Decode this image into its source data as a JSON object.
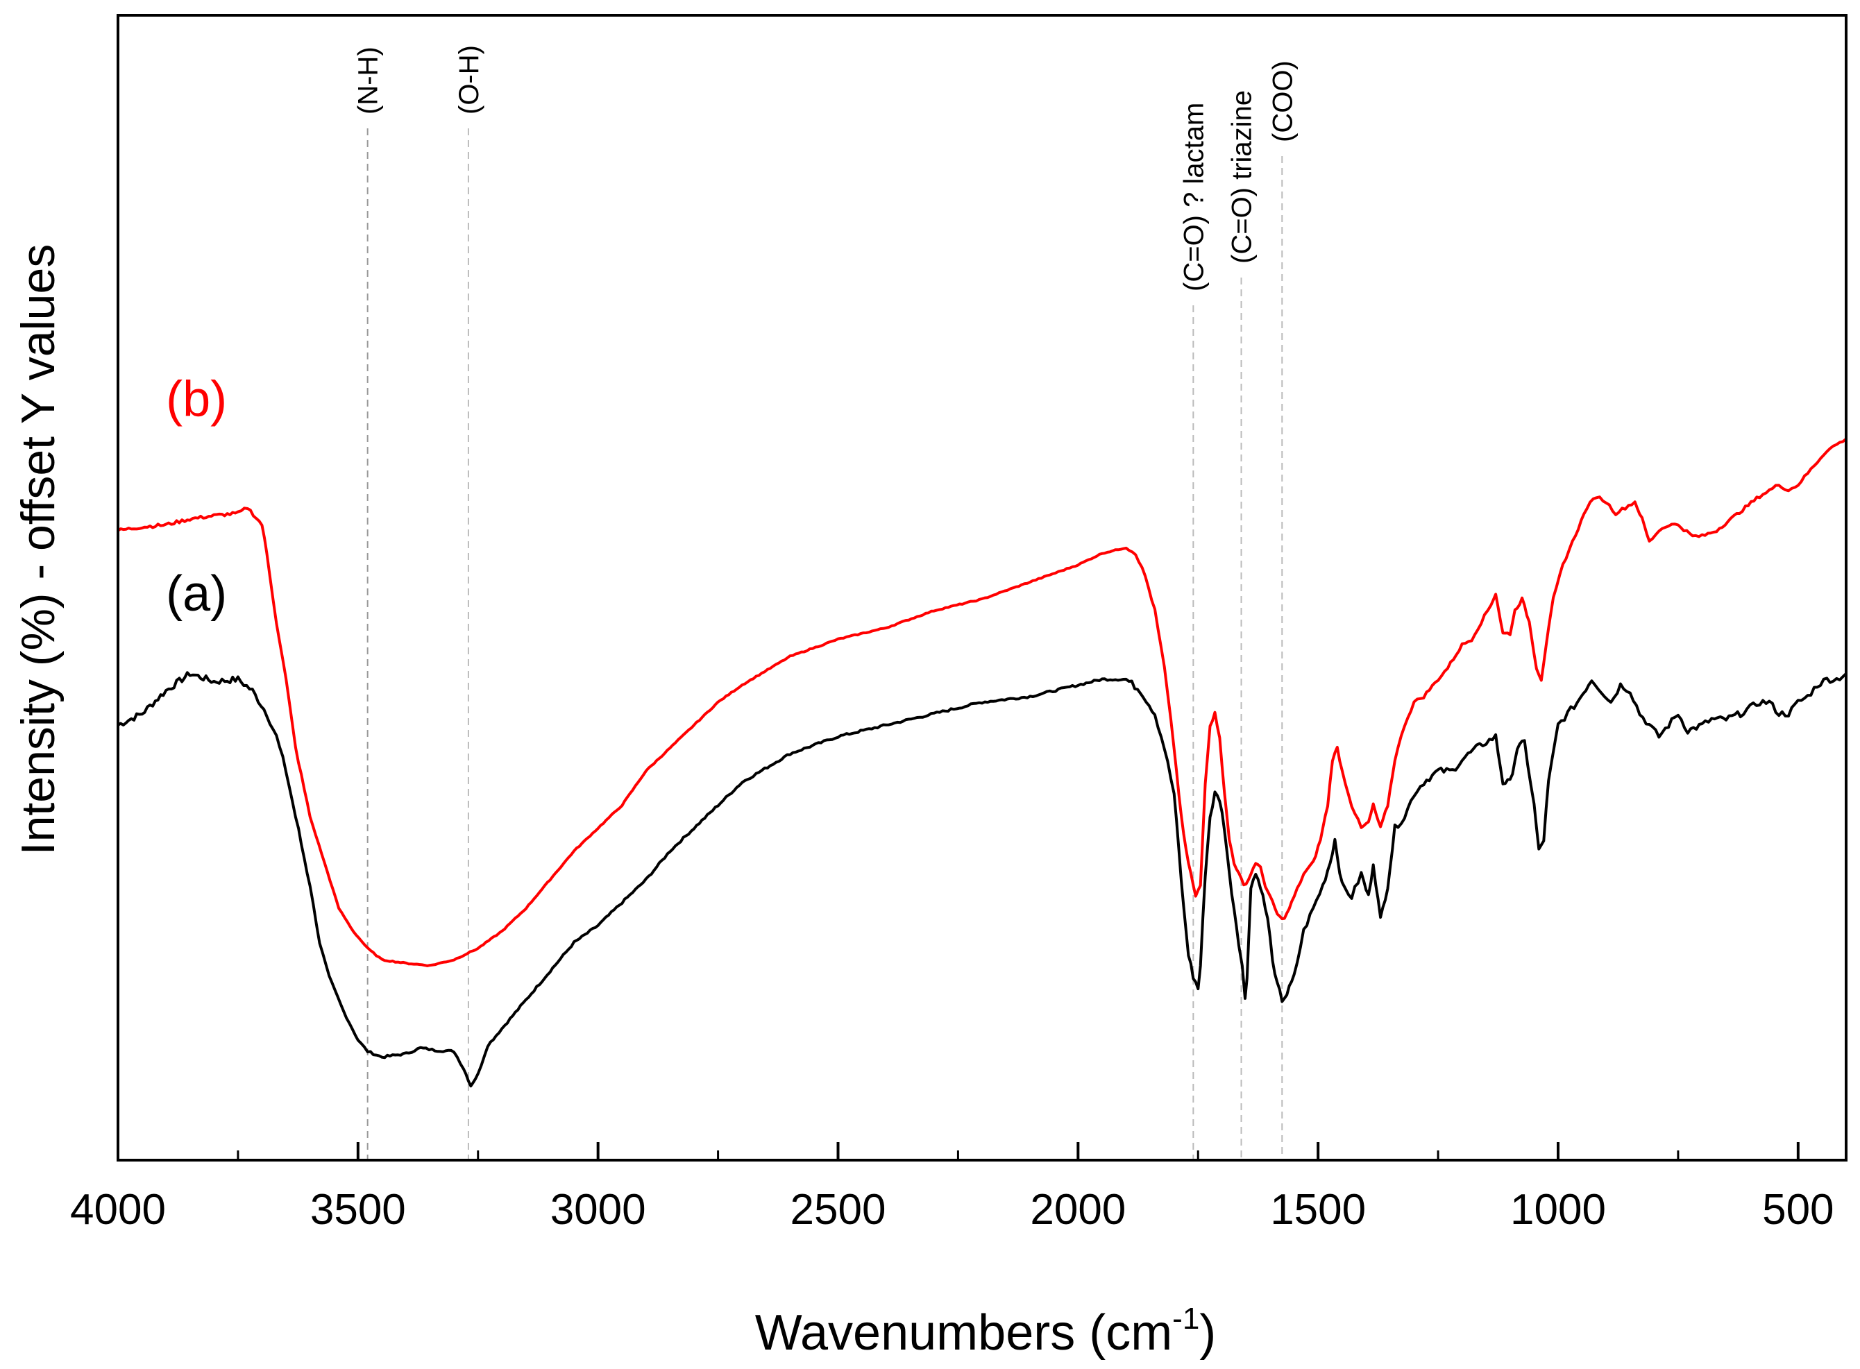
{
  "chart_data": {
    "type": "line",
    "title": "",
    "xlabel_main": "Wavenumbers (cm",
    "xlabel_sup": "-1",
    "xlabel_close": ")",
    "ylabel": "Intensity (%) - offset Y values",
    "xlim": [
      4000,
      400
    ],
    "x_reversed": true,
    "ylim": [
      0,
      100
    ],
    "y_ticks_shown": false,
    "x_major_ticks": [
      4000,
      3500,
      3000,
      2500,
      2000,
      1500,
      1000,
      500
    ],
    "x_tick_labels": [
      "4000",
      "3500",
      "3000",
      "2500",
      "2000",
      "1500",
      "1000",
      "500"
    ],
    "x_minor_step": 250,
    "grid": false,
    "series": [
      {
        "name": "(a)",
        "color": "#000000",
        "label_at": [
          3900,
          48
        ],
        "points": [
          [
            4000,
            38
          ],
          [
            3950,
            39
          ],
          [
            3900,
            41
          ],
          [
            3850,
            42.5
          ],
          [
            3800,
            41.8
          ],
          [
            3750,
            42
          ],
          [
            3720,
            41
          ],
          [
            3690,
            39
          ],
          [
            3670,
            37
          ],
          [
            3650,
            34
          ],
          [
            3630,
            30
          ],
          [
            3600,
            24
          ],
          [
            3580,
            19
          ],
          [
            3560,
            16
          ],
          [
            3530,
            13
          ],
          [
            3500,
            10.5
          ],
          [
            3480,
            9.5
          ],
          [
            3450,
            9
          ],
          [
            3400,
            9.3
          ],
          [
            3370,
            9.8
          ],
          [
            3340,
            9.6
          ],
          [
            3300,
            9.5
          ],
          [
            3280,
            8
          ],
          [
            3265,
            6.5
          ],
          [
            3250,
            7.5
          ],
          [
            3230,
            10
          ],
          [
            3200,
            11.5
          ],
          [
            3150,
            14
          ],
          [
            3100,
            16.5
          ],
          [
            3050,
            19
          ],
          [
            3000,
            20.5
          ],
          [
            2950,
            22.5
          ],
          [
            2900,
            24.5
          ],
          [
            2850,
            27
          ],
          [
            2800,
            29
          ],
          [
            2750,
            31
          ],
          [
            2700,
            33
          ],
          [
            2600,
            35.5
          ],
          [
            2500,
            37
          ],
          [
            2400,
            38
          ],
          [
            2300,
            39
          ],
          [
            2200,
            40
          ],
          [
            2100,
            40.5
          ],
          [
            2000,
            41.5
          ],
          [
            1950,
            42
          ],
          [
            1900,
            42
          ],
          [
            1870,
            41
          ],
          [
            1840,
            39
          ],
          [
            1820,
            36
          ],
          [
            1800,
            32
          ],
          [
            1790,
            27
          ],
          [
            1780,
            22
          ],
          [
            1770,
            18
          ],
          [
            1760,
            16
          ],
          [
            1750,
            15
          ],
          [
            1745,
            17
          ],
          [
            1735,
            25
          ],
          [
            1725,
            30
          ],
          [
            1715,
            32
          ],
          [
            1705,
            31.5
          ],
          [
            1695,
            29
          ],
          [
            1685,
            25
          ],
          [
            1675,
            22
          ],
          [
            1665,
            19
          ],
          [
            1658,
            17
          ],
          [
            1652,
            14
          ],
          [
            1648,
            16
          ],
          [
            1640,
            24
          ],
          [
            1630,
            25
          ],
          [
            1620,
            24
          ],
          [
            1605,
            21
          ],
          [
            1590,
            16
          ],
          [
            1575,
            14
          ],
          [
            1565,
            14.5
          ],
          [
            1550,
            16
          ],
          [
            1530,
            20
          ],
          [
            1510,
            22
          ],
          [
            1490,
            24
          ],
          [
            1475,
            26
          ],
          [
            1465,
            28
          ],
          [
            1450,
            24
          ],
          [
            1430,
            23
          ],
          [
            1410,
            25
          ],
          [
            1395,
            23
          ],
          [
            1385,
            26
          ],
          [
            1370,
            21
          ],
          [
            1355,
            24
          ],
          [
            1340,
            29
          ],
          [
            1320,
            30
          ],
          [
            1300,
            32
          ],
          [
            1280,
            33
          ],
          [
            1250,
            34
          ],
          [
            1220,
            34
          ],
          [
            1200,
            35
          ],
          [
            1170,
            36
          ],
          [
            1150,
            36.5
          ],
          [
            1130,
            37
          ],
          [
            1115,
            33
          ],
          [
            1100,
            33
          ],
          [
            1085,
            36
          ],
          [
            1070,
            36.5
          ],
          [
            1050,
            31
          ],
          [
            1040,
            27
          ],
          [
            1030,
            28
          ],
          [
            1020,
            33
          ],
          [
            1000,
            38
          ],
          [
            980,
            39
          ],
          [
            960,
            40
          ],
          [
            930,
            42
          ],
          [
            910,
            41
          ],
          [
            890,
            40
          ],
          [
            870,
            41.5
          ],
          [
            850,
            41
          ],
          [
            830,
            39
          ],
          [
            810,
            38
          ],
          [
            790,
            37
          ],
          [
            770,
            38
          ],
          [
            750,
            39
          ],
          [
            730,
            37.5
          ],
          [
            700,
            38
          ],
          [
            680,
            38.5
          ],
          [
            650,
            38.5
          ],
          [
            620,
            39
          ],
          [
            600,
            39.5
          ],
          [
            580,
            40
          ],
          [
            560,
            40
          ],
          [
            540,
            39
          ],
          [
            520,
            39
          ],
          [
            500,
            40
          ],
          [
            480,
            40.5
          ],
          [
            460,
            41.5
          ],
          [
            440,
            42
          ],
          [
            420,
            42
          ],
          [
            400,
            42.5
          ]
        ]
      },
      {
        "name": "(b)",
        "color": "#ff0000",
        "label_at": [
          3900,
          65
        ],
        "points": [
          [
            4000,
            55
          ],
          [
            3950,
            55.3
          ],
          [
            3900,
            55.5
          ],
          [
            3850,
            56
          ],
          [
            3800,
            56.3
          ],
          [
            3750,
            56.5
          ],
          [
            3730,
            57
          ],
          [
            3700,
            55.5
          ],
          [
            3690,
            53
          ],
          [
            3670,
            47
          ],
          [
            3650,
            42
          ],
          [
            3630,
            36
          ],
          [
            3600,
            30
          ],
          [
            3570,
            26
          ],
          [
            3540,
            22
          ],
          [
            3510,
            20
          ],
          [
            3480,
            18.5
          ],
          [
            3450,
            17.5
          ],
          [
            3400,
            17.2
          ],
          [
            3350,
            17
          ],
          [
            3300,
            17.5
          ],
          [
            3250,
            18.5
          ],
          [
            3200,
            20
          ],
          [
            3150,
            22
          ],
          [
            3100,
            24.5
          ],
          [
            3050,
            27
          ],
          [
            3000,
            29
          ],
          [
            2950,
            31
          ],
          [
            2900,
            34
          ],
          [
            2850,
            36
          ],
          [
            2800,
            38
          ],
          [
            2750,
            40
          ],
          [
            2700,
            41.5
          ],
          [
            2600,
            44
          ],
          [
            2500,
            45.5
          ],
          [
            2400,
            46.5
          ],
          [
            2300,
            48
          ],
          [
            2200,
            49
          ],
          [
            2100,
            50.5
          ],
          [
            2000,
            52
          ],
          [
            1950,
            53
          ],
          [
            1900,
            53.5
          ],
          [
            1880,
            53
          ],
          [
            1860,
            51
          ],
          [
            1840,
            48
          ],
          [
            1820,
            43
          ],
          [
            1800,
            36
          ],
          [
            1785,
            30
          ],
          [
            1775,
            27
          ],
          [
            1765,
            25
          ],
          [
            1755,
            23
          ],
          [
            1745,
            24
          ],
          [
            1735,
            33
          ],
          [
            1725,
            38
          ],
          [
            1715,
            39
          ],
          [
            1705,
            37
          ],
          [
            1695,
            32
          ],
          [
            1685,
            28
          ],
          [
            1675,
            26
          ],
          [
            1665,
            25
          ],
          [
            1655,
            24
          ],
          [
            1645,
            24.5
          ],
          [
            1630,
            26
          ],
          [
            1620,
            25.5
          ],
          [
            1610,
            24
          ],
          [
            1600,
            23
          ],
          [
            1585,
            21.5
          ],
          [
            1575,
            21
          ],
          [
            1565,
            21.5
          ],
          [
            1550,
            23
          ],
          [
            1530,
            25
          ],
          [
            1510,
            26
          ],
          [
            1495,
            28
          ],
          [
            1480,
            31
          ],
          [
            1470,
            35
          ],
          [
            1460,
            36
          ],
          [
            1450,
            34
          ],
          [
            1430,
            31
          ],
          [
            1410,
            29
          ],
          [
            1395,
            29.5
          ],
          [
            1385,
            31
          ],
          [
            1370,
            29
          ],
          [
            1355,
            31
          ],
          [
            1340,
            35
          ],
          [
            1320,
            38
          ],
          [
            1300,
            40
          ],
          [
            1280,
            40.5
          ],
          [
            1250,
            42
          ],
          [
            1230,
            43
          ],
          [
            1200,
            45
          ],
          [
            1180,
            45.5
          ],
          [
            1160,
            47
          ],
          [
            1140,
            48.5
          ],
          [
            1130,
            49.5
          ],
          [
            1115,
            46
          ],
          [
            1100,
            46
          ],
          [
            1090,
            48
          ],
          [
            1075,
            49
          ],
          [
            1060,
            47
          ],
          [
            1045,
            43
          ],
          [
            1035,
            42
          ],
          [
            1025,
            45
          ],
          [
            1010,
            49
          ],
          [
            990,
            52
          ],
          [
            970,
            54
          ],
          [
            940,
            57
          ],
          [
            920,
            58
          ],
          [
            900,
            57.5
          ],
          [
            880,
            56.5
          ],
          [
            860,
            57
          ],
          [
            840,
            57.5
          ],
          [
            825,
            56
          ],
          [
            810,
            54
          ],
          [
            790,
            55
          ],
          [
            770,
            55.5
          ],
          [
            750,
            55.5
          ],
          [
            720,
            54.5
          ],
          [
            700,
            54.5
          ],
          [
            670,
            55
          ],
          [
            640,
            56
          ],
          [
            610,
            57
          ],
          [
            580,
            58
          ],
          [
            560,
            58.5
          ],
          [
            540,
            59
          ],
          [
            520,
            58.5
          ],
          [
            500,
            59
          ],
          [
            480,
            60
          ],
          [
            460,
            61
          ],
          [
            440,
            62
          ],
          [
            420,
            62.5
          ],
          [
            400,
            63
          ]
        ]
      }
    ],
    "annotations": [
      {
        "text": "(N-H)",
        "x": 3480
      },
      {
        "text": "(O-H)",
        "x": 3270
      },
      {
        "text": "(C=O) ? lactam",
        "x": 1760
      },
      {
        "text": "(C=O) triazine",
        "x": 1660
      },
      {
        "text": "(COO)",
        "x": 1575
      }
    ],
    "annotation_line_colors": [
      "#999999",
      "#bbbbbb",
      "#bbbbbb",
      "#bbbbbb",
      "#bbbbbb"
    ]
  }
}
